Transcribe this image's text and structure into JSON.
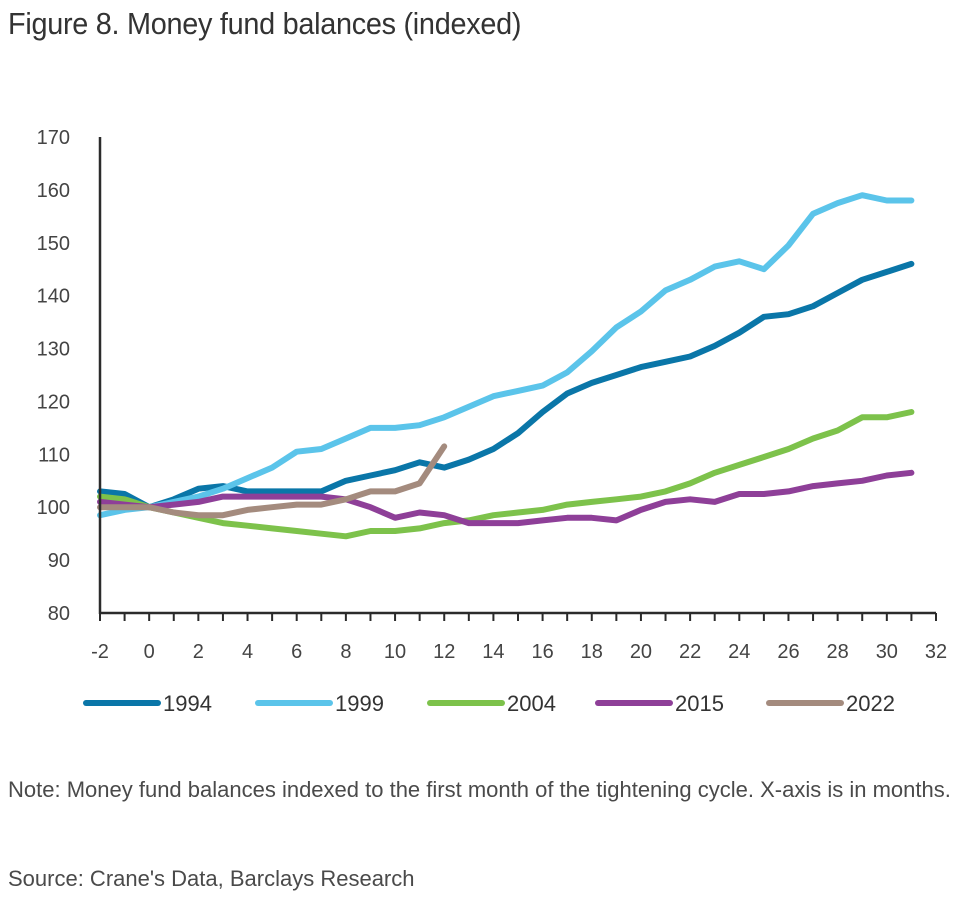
{
  "title": "Figure 8. Money fund balances (indexed)",
  "note": "Note: Money fund balances indexed to the first month of the tightening cycle. X-axis is in months.",
  "source": "Source: Crane's Data, Barclays Research",
  "chart_data": {
    "type": "line",
    "title": "Figure 8. Money fund balances (indexed)",
    "xlabel": "",
    "ylabel": "",
    "xlim": [
      -2,
      32
    ],
    "ylim": [
      80,
      170
    ],
    "xticks": [
      -2,
      0,
      2,
      4,
      6,
      8,
      10,
      12,
      14,
      16,
      18,
      20,
      22,
      24,
      26,
      28,
      30,
      32
    ],
    "yticks": [
      80,
      90,
      100,
      110,
      120,
      130,
      140,
      150,
      160,
      170
    ],
    "grid": false,
    "legend_position": "bottom",
    "x": [
      -2,
      -1,
      0,
      1,
      2,
      3,
      4,
      5,
      6,
      7,
      8,
      9,
      10,
      11,
      12,
      13,
      14,
      15,
      16,
      17,
      18,
      19,
      20,
      21,
      22,
      23,
      24,
      25,
      26,
      27,
      28,
      29,
      30,
      31
    ],
    "series": [
      {
        "name": "1994",
        "color": "#0a76a8",
        "values": [
          103,
          102.5,
          100,
          101.5,
          103.5,
          104,
          103,
          103,
          103,
          103,
          105,
          106,
          107,
          108.5,
          107.5,
          109,
          111,
          114,
          118,
          121.5,
          123.5,
          125,
          126.5,
          127.5,
          128.5,
          130.5,
          133,
          136,
          136.5,
          138,
          140.5,
          143,
          144.5,
          146
        ]
      },
      {
        "name": "1999",
        "color": "#5bc4ea",
        "values": [
          98.5,
          99.5,
          100,
          101,
          102,
          103.5,
          105.5,
          107.5,
          110.5,
          111,
          113,
          115,
          115,
          115.5,
          117,
          119,
          121,
          122,
          123,
          125.5,
          129.5,
          134,
          137,
          141,
          143,
          145.5,
          146.5,
          145,
          149.5,
          155.5,
          157.5,
          159,
          158,
          158
        ]
      },
      {
        "name": "2004",
        "color": "#7dc24b",
        "values": [
          102,
          101.5,
          100,
          99,
          98,
          97,
          96.5,
          96,
          95.5,
          95,
          94.5,
          95.5,
          95.5,
          96,
          97,
          97.5,
          98.5,
          99,
          99.5,
          100.5,
          101,
          101.5,
          102,
          103,
          104.5,
          106.5,
          108,
          109.5,
          111,
          113,
          114.5,
          117,
          117,
          118
        ]
      },
      {
        "name": "2015",
        "color": "#8e3f98",
        "values": [
          101,
          100.5,
          100,
          100.5,
          101,
          102,
          102,
          102,
          102,
          102,
          101.5,
          100,
          98,
          99,
          98.5,
          97,
          97,
          97,
          97.5,
          98,
          98,
          97.5,
          99.5,
          101,
          101.5,
          101,
          102.5,
          102.5,
          103,
          104,
          104.5,
          105,
          106,
          106.5
        ]
      },
      {
        "name": "2022",
        "color": "#a48b7e",
        "values": [
          100,
          100,
          100,
          99,
          98.5,
          98.5,
          99.5,
          100,
          100.5,
          100.5,
          101.5,
          103,
          103,
          104.5,
          111.5
        ]
      }
    ]
  }
}
